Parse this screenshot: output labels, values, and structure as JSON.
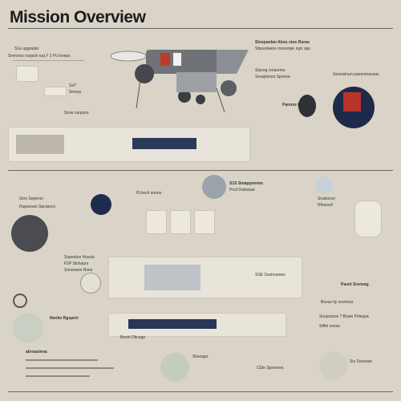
{
  "title": "Mission Overview",
  "labels": {
    "l01": "S1e upgrader",
    "l02": "Srrevoss ruopsiv ruq Y 2 Pcl keeps",
    "l03": "Sloopanlan Abox stos Ruras",
    "l04": "Sfaresteens ronoonpe rupr ops",
    "l05": "Slaceg rvnsorme",
    "l06": "Sreapinnos Sponse",
    "l07": "Sersssioun panenmacnas",
    "l08": "Panoss Roal",
    "l09": "Sa?",
    "l10": "Sressy",
    "l11": "Snoe ssrpons",
    "l12": "Grre Seperss",
    "l13": "Rupseoan Sprasecs",
    "l14": "PUsrch sorms",
    "l15": "S1S Smappmems",
    "l16": "Prcit Dokwsae",
    "l17": "Sruskcsor",
    "l18": "Rfooced",
    "l19": "Superbss Hussla",
    "l20": "F2P Stchaurs",
    "l21": "Sorsewon Roes",
    "l22": "SSE Snoinueees",
    "l23": "Paunl Srenseg",
    "l24": "Bsous tiy ooveoss",
    "l25": "Nenko Rgspnrt",
    "l26": "Soopraoos ? Bosei Peleypa",
    "l27": "Stffel veeso",
    "l28": "Beshl Oltcoge",
    "l29": "abroasinna",
    "l30": "Sksoapo",
    "l31": "CEle Spresoes",
    "l32": "Siu Ssessae"
  },
  "icons": [
    "spacecraft-icon",
    "probe-icon",
    "planet-icon",
    "astronaut-icon",
    "satellite-icon",
    "tool-icon",
    "helmet-icon"
  ],
  "colors": {
    "background": "#d9d4c7",
    "accent_red": "#c0392b",
    "navy": "#1e2a4a"
  }
}
